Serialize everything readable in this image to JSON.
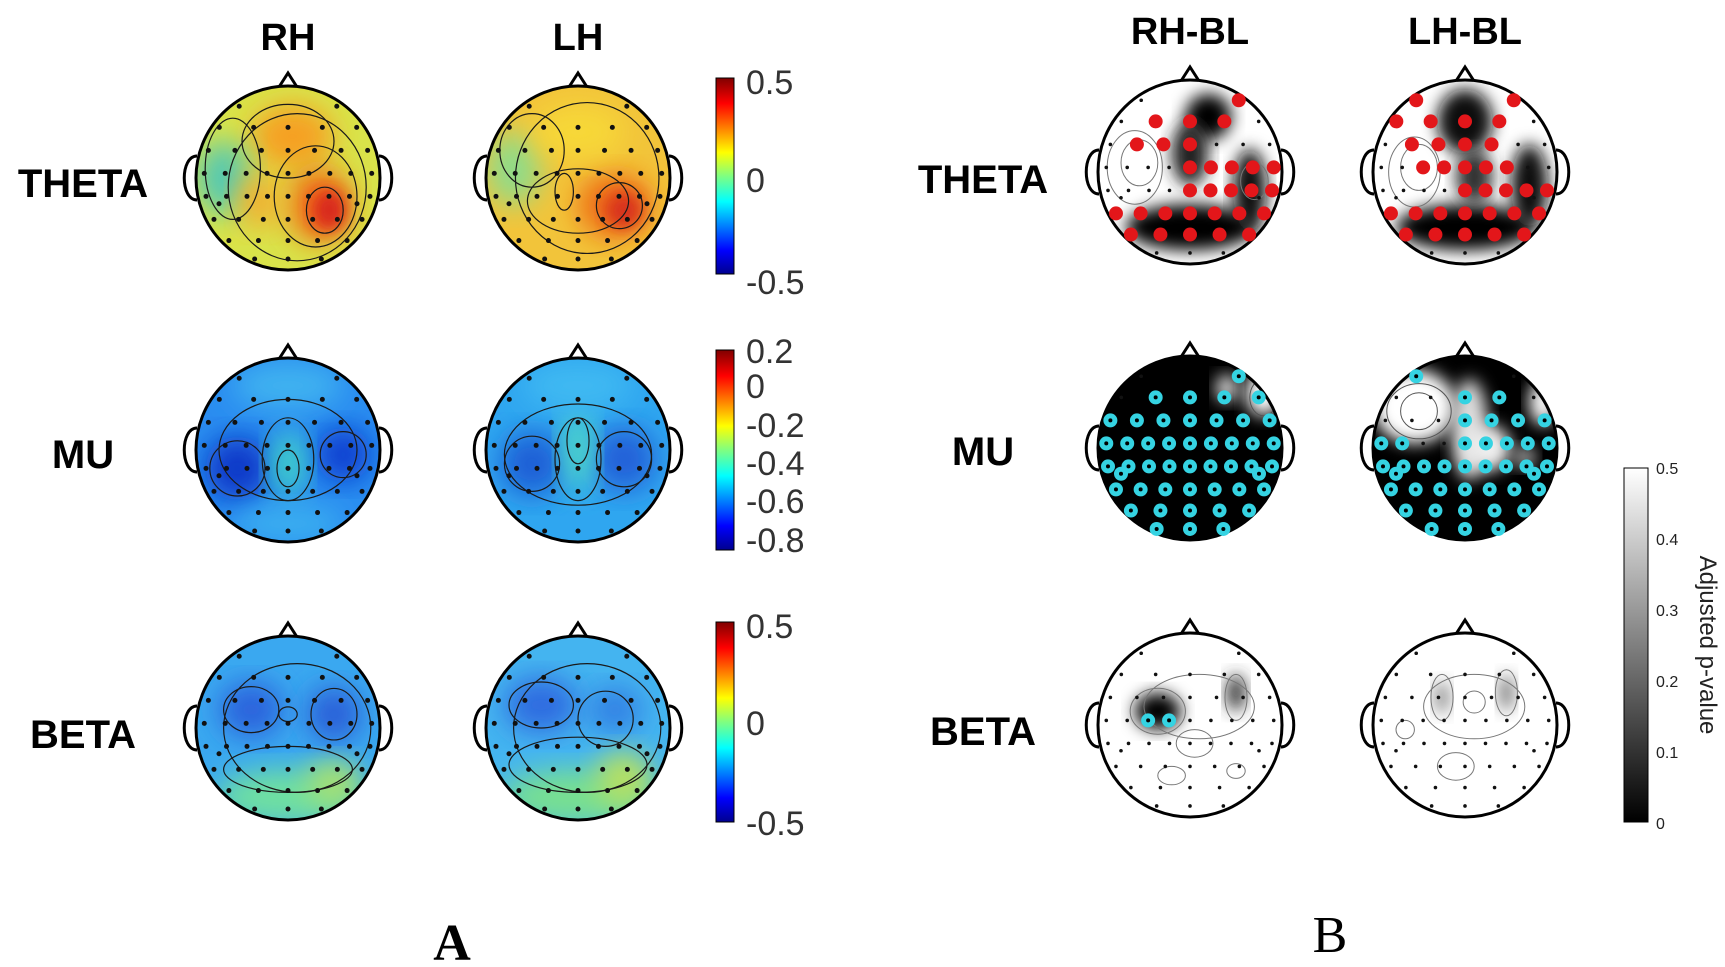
{
  "panel_a": {
    "columns": [
      "RH",
      "LH"
    ],
    "rows": [
      "THETA",
      "MU",
      "BETA"
    ],
    "colorbars": [
      {
        "ticks": [
          "0.5",
          "0",
          "-0.5"
        ],
        "range": [
          -0.5,
          0.5
        ],
        "colormap": "jet"
      },
      {
        "ticks": [
          "0.2",
          "0",
          "-0.2",
          "-0.4",
          "-0.6",
          "-0.8"
        ],
        "range": [
          -0.8,
          0.2
        ],
        "colormap": "jet"
      },
      {
        "ticks": [
          "0.5",
          "0",
          "-0.5"
        ],
        "range": [
          -0.5,
          0.5
        ],
        "colormap": "jet"
      }
    ],
    "letter": "A"
  },
  "panel_b": {
    "columns": [
      "RH-BL",
      "LH-BL"
    ],
    "rows": [
      "THETA",
      "MU",
      "BETA"
    ],
    "colorbar": {
      "ticks": [
        "0.5",
        "0.4",
        "0.3",
        "0.2",
        "0.1",
        "0"
      ],
      "label": "Adjusted p-value",
      "range": [
        0,
        0.5
      ],
      "colormap": "gray"
    },
    "letter": "B",
    "significant_electrode_colors": {
      "theta": "#e3161a",
      "mu": "#35d3e2",
      "beta": "#35d3e2"
    }
  }
}
